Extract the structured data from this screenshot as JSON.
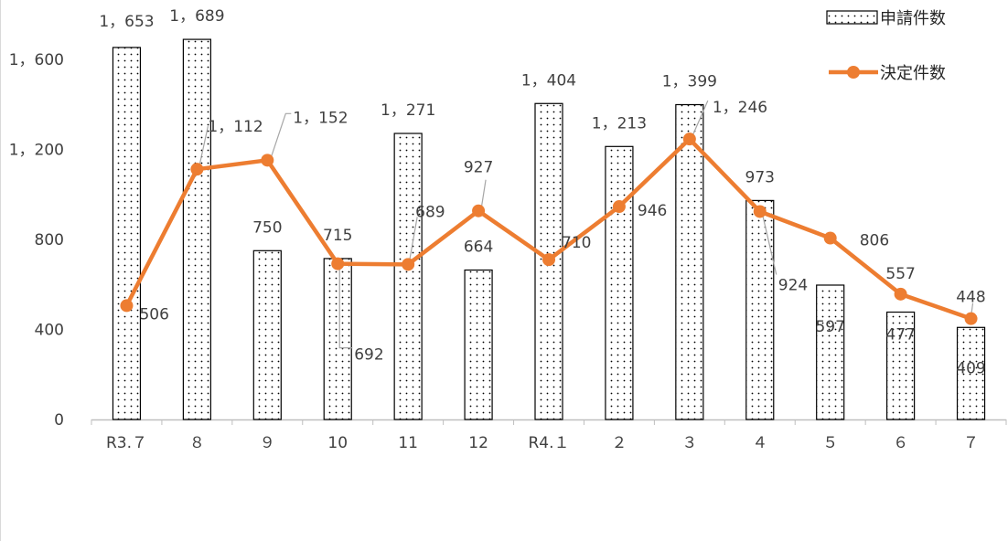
{
  "chart_data": {
    "type": "bar+line",
    "categories": [
      "R3.７",
      "８",
      "９",
      "10",
      "11",
      "12",
      "R4.１",
      "２",
      "３",
      "４",
      "５",
      "６",
      "７"
    ],
    "ylim": [
      0,
      1600
    ],
    "yticks": [
      0,
      400,
      800,
      1200,
      1600
    ],
    "ytick_labels": [
      "0",
      "400",
      "800",
      "1，200",
      "1，600"
    ],
    "grid": false,
    "legend_position": "top-right",
    "series": [
      {
        "name": "申請件数",
        "type": "bar",
        "values": [
          1653,
          1689,
          750,
          715,
          1271,
          664,
          1404,
          1213,
          1399,
          973,
          597,
          477,
          409
        ],
        "labels": [
          "1，653",
          "1，689",
          "750",
          "715",
          "1，271",
          "664",
          "1，404",
          "1，213",
          "1，399",
          "973",
          "597",
          "477",
          "409"
        ],
        "color": "#ffffff",
        "pattern": "dots"
      },
      {
        "name": "決定件数",
        "type": "line",
        "values": [
          506,
          1112,
          1152,
          692,
          689,
          927,
          710,
          946,
          1246,
          924,
          806,
          557,
          448
        ],
        "labels": [
          "506",
          "1，112",
          "1，152",
          "692",
          "689",
          "927",
          "710",
          "946",
          "1，246",
          "924",
          "806",
          "557",
          "448"
        ],
        "color": "#ED7D31"
      }
    ]
  }
}
